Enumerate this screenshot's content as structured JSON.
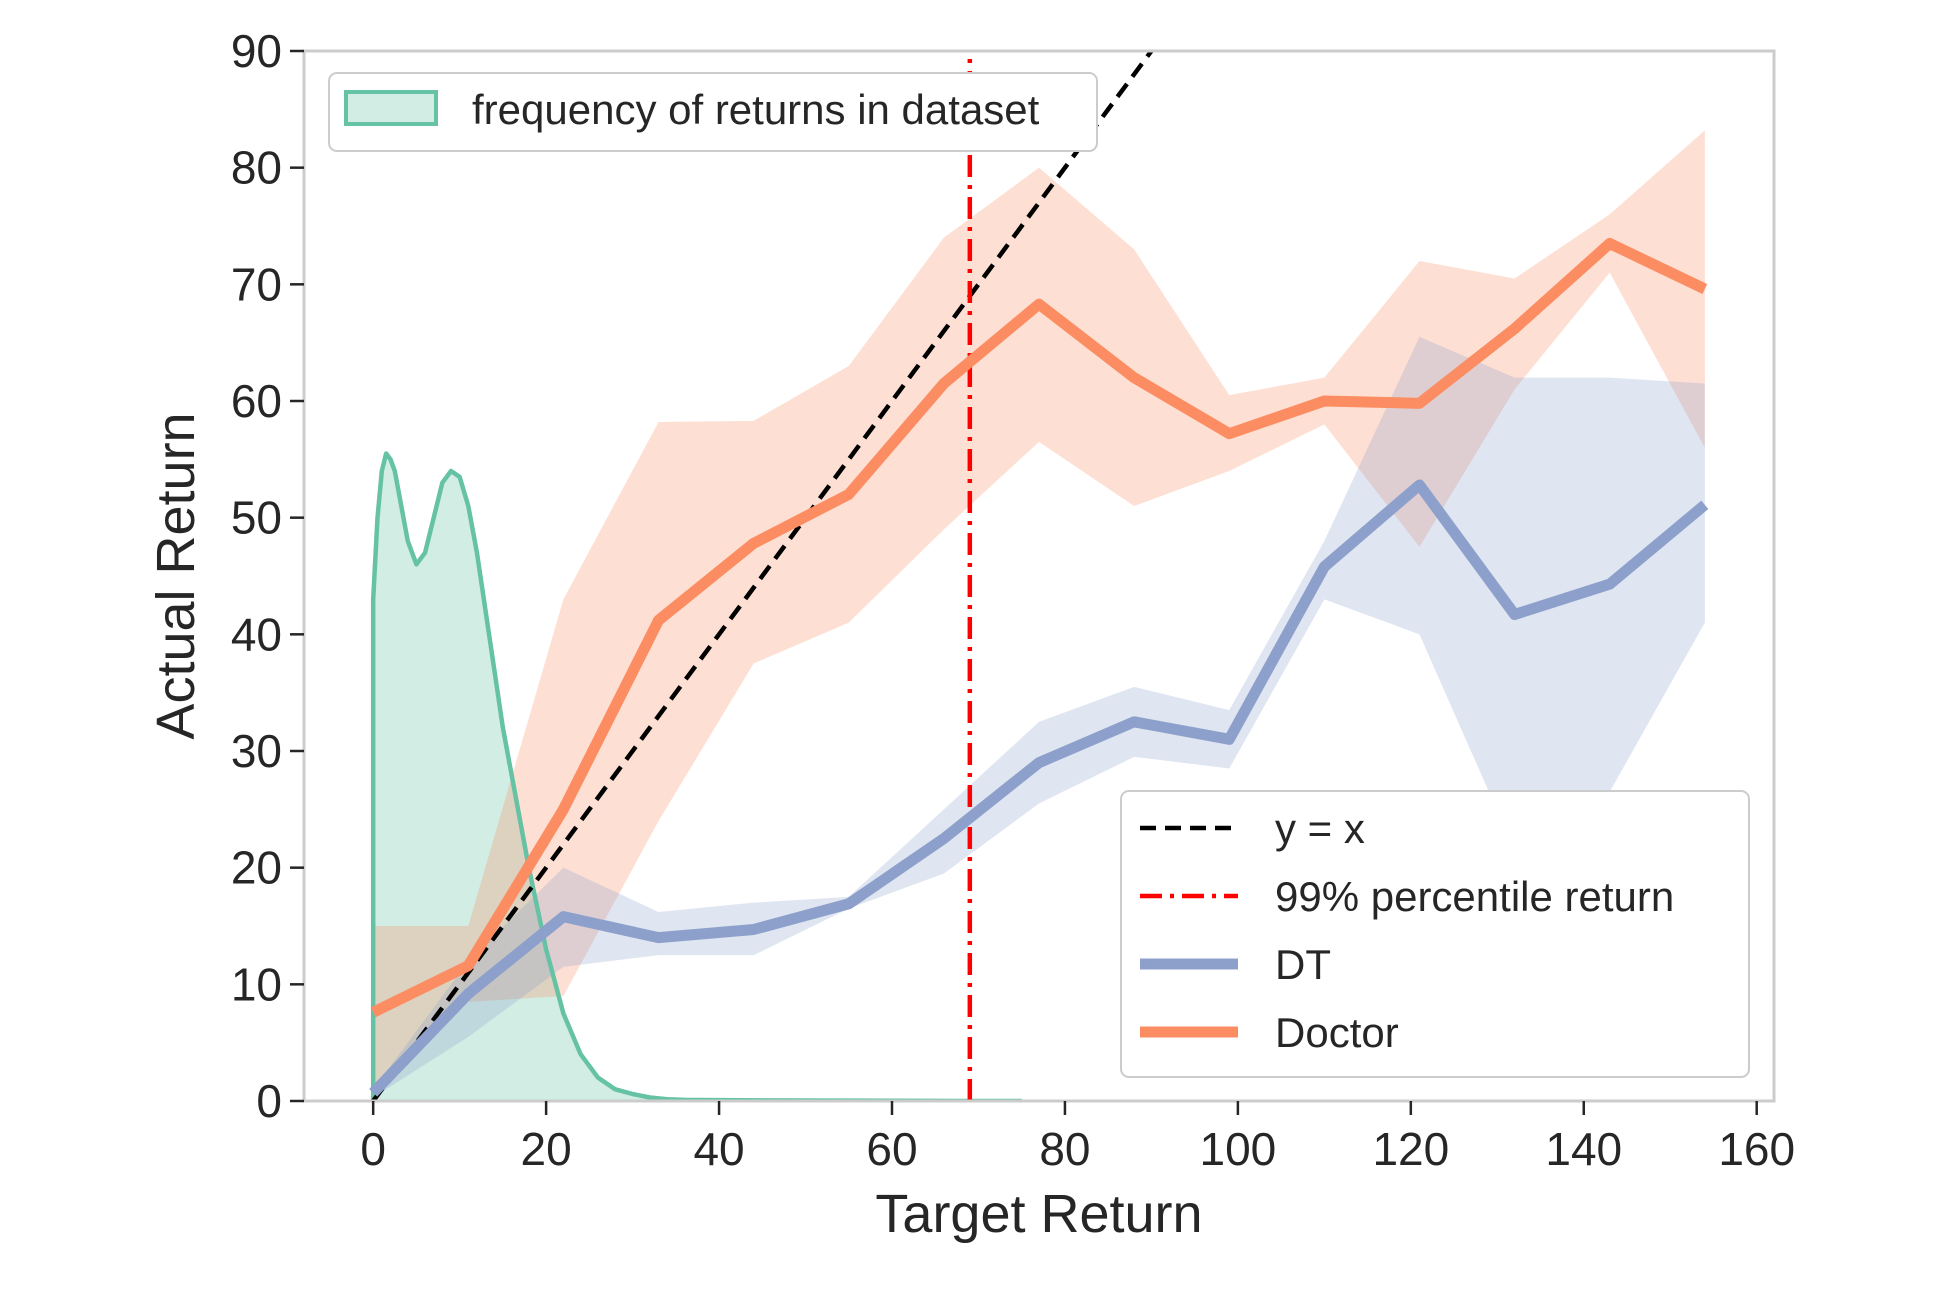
{
  "chart_data": {
    "type": "line",
    "xlabel": "Target Return",
    "ylabel": "Actual Return",
    "xlim": [
      -8,
      162
    ],
    "ylim": [
      0,
      90
    ],
    "xticks": [
      0,
      20,
      40,
      60,
      80,
      100,
      120,
      140,
      160
    ],
    "yticks": [
      0,
      10,
      20,
      30,
      40,
      50,
      60,
      70,
      80,
      90
    ],
    "grid": false,
    "series": [
      {
        "name": "DT",
        "color": "#8da0cb",
        "x": [
          0,
          11,
          22,
          33,
          44,
          55,
          66,
          77,
          88,
          99,
          110,
          121,
          132,
          143,
          154
        ],
        "y": [
          0.7,
          9.2,
          15.8,
          14,
          14.7,
          16.9,
          22.5,
          29,
          32.5,
          31,
          45.8,
          52.8,
          41.7,
          44.3,
          51.1
        ],
        "lower": [
          0.3,
          5.5,
          11.5,
          12.5,
          12.5,
          16.5,
          19.5,
          25.5,
          29.5,
          28.5,
          43,
          40,
          21.5,
          26.5,
          41
        ],
        "upper": [
          1,
          12,
          20,
          16.2,
          17,
          17.5,
          25,
          32.5,
          35.5,
          33.5,
          48,
          65.5,
          62,
          62,
          61.5
        ]
      },
      {
        "name": "Doctor",
        "color": "#fc8d62",
        "x": [
          0,
          11,
          22,
          33,
          44,
          55,
          66,
          77,
          88,
          99,
          110,
          121,
          132,
          143,
          154
        ],
        "y": [
          7.6,
          11.6,
          25,
          41.2,
          47.8,
          52,
          61.5,
          68.3,
          62,
          57.2,
          60,
          59.8,
          66.2,
          73.5,
          69.6
        ],
        "lower": [
          0.3,
          8.5,
          9,
          24,
          37.5,
          41,
          49,
          56.5,
          51,
          54,
          58,
          47.5,
          61,
          71,
          56
        ],
        "upper": [
          15,
          15,
          43,
          58.2,
          58.3,
          63,
          74,
          80,
          73,
          60.5,
          62,
          72,
          70.5,
          76,
          83.2
        ]
      },
      {
        "name": "y = x",
        "color": "#000000",
        "x": [
          0,
          90
        ],
        "y": [
          0,
          90
        ]
      },
      {
        "name": "99% percentile return",
        "color": "#ff0000",
        "x": [
          69,
          69
        ],
        "y": [
          0,
          90
        ]
      },
      {
        "name": "frequency of returns in dataset",
        "color": "#66c2a5",
        "x": [
          0,
          0,
          0.5,
          1,
          1.5,
          2,
          2.5,
          3,
          4,
          5,
          6,
          7,
          8,
          9,
          10,
          11,
          12,
          13,
          14,
          15,
          16,
          18,
          20,
          22,
          24,
          26,
          28,
          30,
          32,
          34,
          36,
          40,
          45,
          50,
          55,
          60,
          65,
          68,
          70,
          75
        ],
        "y": [
          0,
          43,
          50,
          54,
          55.5,
          55,
          54,
          52,
          48,
          46,
          47,
          50,
          53,
          54,
          53.5,
          51,
          47,
          42,
          37,
          32,
          28,
          20,
          13,
          7.5,
          4,
          2,
          1,
          0.6,
          0.3,
          0.15,
          0.1,
          0.08,
          0.05,
          0.04,
          0.03,
          0.02,
          0.01,
          0.005,
          0,
          0
        ]
      }
    ],
    "legends": [
      {
        "placement": "top-left",
        "entries": [
          "frequency of returns in dataset"
        ]
      },
      {
        "placement": "lower-right",
        "entries": [
          "y = x",
          "99% percentile return",
          "DT",
          "Doctor"
        ]
      }
    ]
  }
}
